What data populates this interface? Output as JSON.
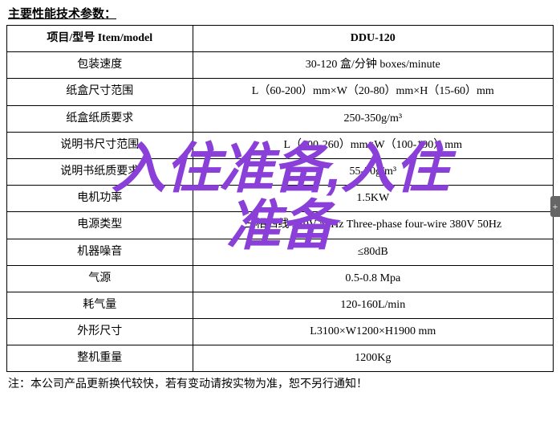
{
  "heading": "主要性能技术参数：",
  "table": {
    "header": {
      "item": "项目/型号 Item/model",
      "model": "DDU-120"
    },
    "rows": [
      {
        "label": "包装速度",
        "value": "30-120 盒/分钟 boxes/minute"
      },
      {
        "label": "纸盒尺寸范围",
        "value": "L（60-200）mm×W（20-80）mm×H（15-60）mm"
      },
      {
        "label": "纸盒纸质要求",
        "value": "250-350g/m³"
      },
      {
        "label": "说明书尺寸范围",
        "value": "L（100-260）mm×W（100-190）mm"
      },
      {
        "label": "说明书纸质要求",
        "value": "55-70g/m³"
      },
      {
        "label": "电机功率",
        "value": "1.5KW"
      },
      {
        "label": "电源类型",
        "value": "三相四线 380V 50Hz Three-phase four-wire 380V 50Hz"
      },
      {
        "label": "机器噪音",
        "value": "≤80dB"
      },
      {
        "label": "气源",
        "value": "0.5-0.8 Mpa"
      },
      {
        "label": "耗气量",
        "value": "120-160L/min"
      },
      {
        "label": "外形尺寸",
        "value": "L3100×W1200×H1900 mm"
      },
      {
        "label": "整机重量",
        "value": "1200Kg"
      }
    ]
  },
  "footnote": "注：本公司产品更新换代较快，若有变动请按实物为准，恕不另行通知！",
  "overlay": {
    "line1": "入住准备,入住",
    "line2": "准备",
    "color": "#8a3fd8",
    "font_size_pt": 51,
    "font_weight": 900,
    "italic": true
  },
  "side_tab": "+",
  "colors": {
    "text": "#000000",
    "border": "#000000",
    "background": "#ffffff",
    "overlay": "#8a3fd8"
  }
}
